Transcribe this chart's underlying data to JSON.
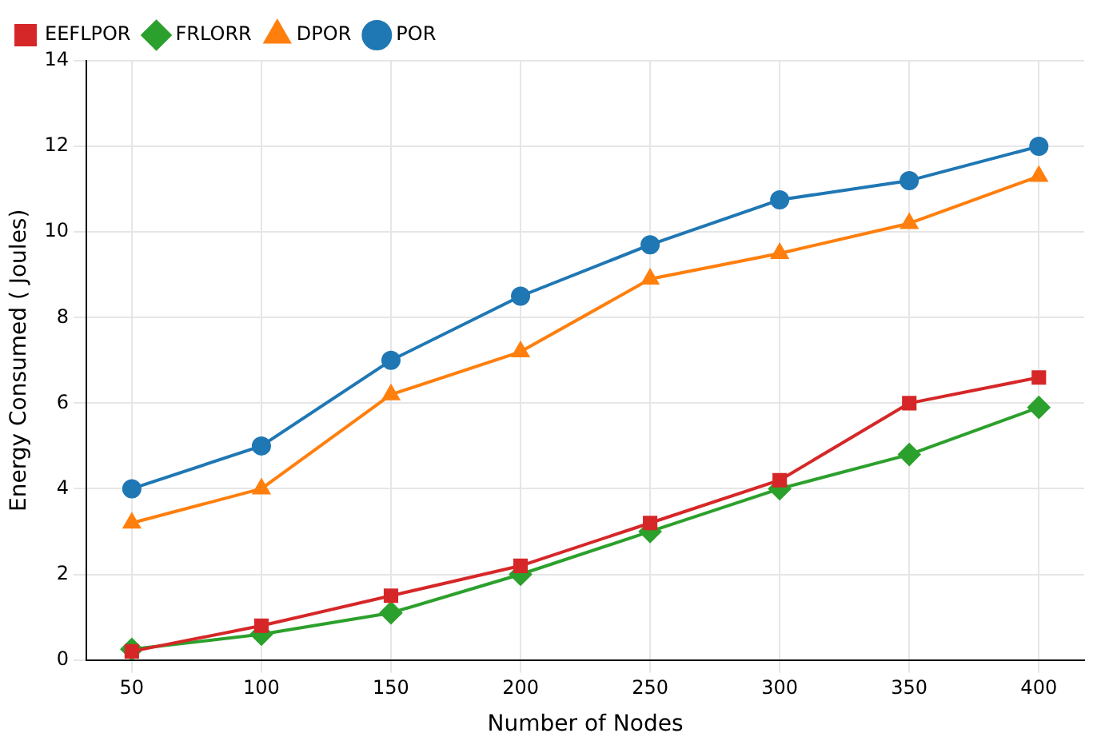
{
  "chart_data": {
    "type": "line",
    "xlabel": "Number of Nodes",
    "ylabel": "Energy Consumed ( Joules)",
    "x": [
      50,
      100,
      150,
      200,
      250,
      300,
      350,
      400
    ],
    "xlim": [
      32.5,
      417.5
    ],
    "xticks": [
      50,
      100,
      150,
      200,
      250,
      300,
      350,
      400
    ],
    "ylim": [
      0,
      14
    ],
    "yticks": [
      0,
      2,
      4,
      6,
      8,
      10,
      12,
      14
    ],
    "grid": true,
    "legend": "top left",
    "line_style": "solid",
    "series": [
      {
        "name": "POR",
        "color": "#1f77b4",
        "marker": "circle",
        "values": [
          4.0,
          5.0,
          7.0,
          8.5,
          9.7,
          10.75,
          11.2,
          12.0
        ]
      },
      {
        "name": "DPOR",
        "color": "#ff7f0e",
        "marker": "triangle",
        "values": [
          3.2,
          4.0,
          6.2,
          7.2,
          8.9,
          9.5,
          10.2,
          11.3
        ]
      },
      {
        "name": "FRLORR",
        "color": "#2ca02c",
        "marker": "diamond",
        "values": [
          0.25,
          0.6,
          1.1,
          2.0,
          3.0,
          4.0,
          4.8,
          5.9
        ]
      },
      {
        "name": "EEFLPOR",
        "color": "#d62728",
        "marker": "square",
        "values": [
          0.2,
          0.8,
          1.5,
          2.2,
          3.2,
          4.2,
          6.0,
          6.6
        ]
      }
    ]
  }
}
